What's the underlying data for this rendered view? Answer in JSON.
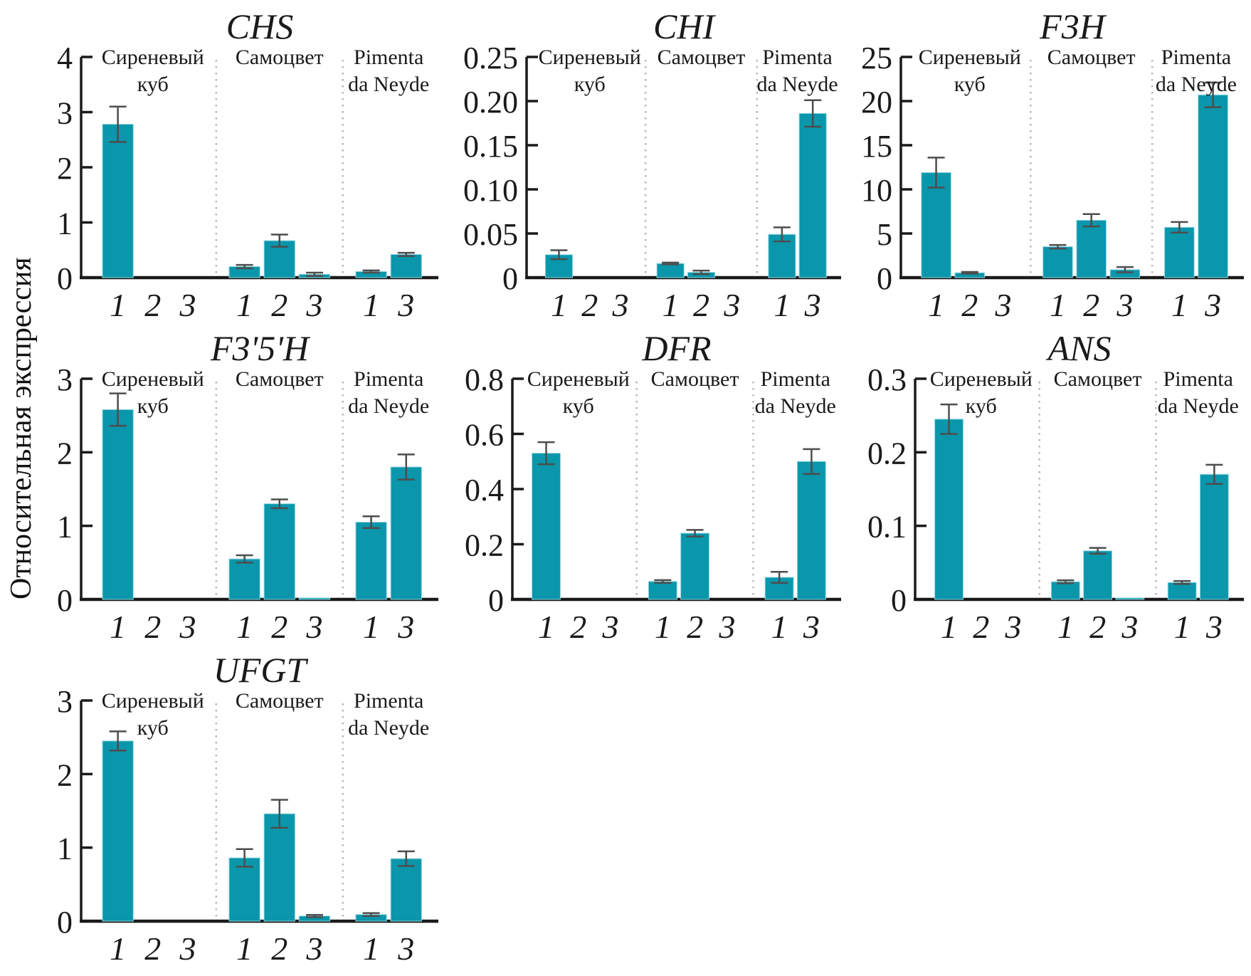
{
  "figure": {
    "ylabel": "Относительная экспрессия",
    "bar_color": "#0a96ab",
    "bar_edge_color": "#8fd5de",
    "error_color": "#4d4d4d",
    "axis_color": "#1a1a1a",
    "separator_color": "#b4b9b4",
    "group_names": [
      "Сиреневый куб",
      "Самоцвет",
      "Pimenta da Neyde"
    ]
  },
  "chart_data": [
    {
      "type": "bar",
      "title": "CHS",
      "ylim": [
        0,
        4
      ],
      "yticks": [
        "0",
        "1",
        "2",
        "3",
        "4"
      ],
      "groups": [
        {
          "name": "Сиреневый куб",
          "label_lines": [
            "Сиреневый",
            "куб"
          ],
          "bars": [
            {
              "x": "1",
              "value": 2.78,
              "err": 0.32
            },
            {
              "x": "2",
              "value": 0,
              "err": 0
            },
            {
              "x": "3",
              "value": 0,
              "err": 0
            }
          ]
        },
        {
          "name": "Самоцвет",
          "label_lines": [
            "Самоцвет"
          ],
          "bars": [
            {
              "x": "1",
              "value": 0.2,
              "err": 0.03
            },
            {
              "x": "2",
              "value": 0.67,
              "err": 0.11
            },
            {
              "x": "3",
              "value": 0.06,
              "err": 0.03
            }
          ]
        },
        {
          "name": "Pimenta da Neyde",
          "label_lines": [
            "Pimenta",
            "da Neyde"
          ],
          "bars": [
            {
              "x": "1",
              "value": 0.11,
              "err": 0.02
            },
            {
              "x": "3",
              "value": 0.42,
              "err": 0.03
            }
          ]
        }
      ]
    },
    {
      "type": "bar",
      "title": "CHI",
      "ylim": [
        0,
        0.25
      ],
      "yticks": [
        "0",
        "0.05",
        "0.10",
        "0.15",
        "0.20",
        "0.25"
      ],
      "groups": [
        {
          "name": "Сиреневый куб",
          "label_lines": [
            "Сиреневый",
            "куб"
          ],
          "bars": [
            {
              "x": "1",
              "value": 0.026,
              "err": 0.005
            },
            {
              "x": "2",
              "value": 0,
              "err": 0
            },
            {
              "x": "3",
              "value": 0,
              "err": 0
            }
          ]
        },
        {
          "name": "Самоцвет",
          "label_lines": [
            "Самоцвет"
          ],
          "bars": [
            {
              "x": "1",
              "value": 0.016,
              "err": 0.001
            },
            {
              "x": "2",
              "value": 0.006,
              "err": 0.002
            },
            {
              "x": "3",
              "value": 0,
              "err": 0
            }
          ]
        },
        {
          "name": "Pimenta da Neyde",
          "label_lines": [
            "Pimenta",
            "da Neyde"
          ],
          "bars": [
            {
              "x": "1",
              "value": 0.049,
              "err": 0.008
            },
            {
              "x": "3",
              "value": 0.186,
              "err": 0.015
            }
          ]
        }
      ]
    },
    {
      "type": "bar",
      "title": "F3H",
      "ylim": [
        0,
        25
      ],
      "yticks": [
        "0",
        "5",
        "10",
        "15",
        "20",
        "25"
      ],
      "groups": [
        {
          "name": "Сиреневый куб",
          "label_lines": [
            "Сиреневый",
            "куб"
          ],
          "bars": [
            {
              "x": "1",
              "value": 11.9,
              "err": 1.7
            },
            {
              "x": "2",
              "value": 0.55,
              "err": 0.1
            },
            {
              "x": "3",
              "value": 0,
              "err": 0
            }
          ]
        },
        {
          "name": "Самоцвет",
          "label_lines": [
            "Самоцвет"
          ],
          "bars": [
            {
              "x": "1",
              "value": 3.5,
              "err": 0.2
            },
            {
              "x": "2",
              "value": 6.5,
              "err": 0.7
            },
            {
              "x": "3",
              "value": 0.9,
              "err": 0.3
            }
          ]
        },
        {
          "name": "Pimenta da Neyde",
          "label_lines": [
            "Pimenta",
            "da Neyde"
          ],
          "bars": [
            {
              "x": "1",
              "value": 5.7,
              "err": 0.6
            },
            {
              "x": "3",
              "value": 20.7,
              "err": 1.4
            }
          ]
        }
      ]
    },
    {
      "type": "bar",
      "title": "F3'5'H",
      "ylim": [
        0,
        3
      ],
      "yticks": [
        "0",
        "1",
        "2",
        "3"
      ],
      "groups": [
        {
          "name": "Сиреневый куб",
          "label_lines": [
            "Сиреневый",
            "куб"
          ],
          "bars": [
            {
              "x": "1",
              "value": 2.58,
              "err": 0.22
            },
            {
              "x": "2",
              "value": 0,
              "err": 0
            },
            {
              "x": "3",
              "value": 0,
              "err": 0
            }
          ]
        },
        {
          "name": "Самоцвет",
          "label_lines": [
            "Самоцвет"
          ],
          "bars": [
            {
              "x": "1",
              "value": 0.55,
              "err": 0.05
            },
            {
              "x": "2",
              "value": 1.3,
              "err": 0.06
            },
            {
              "x": "3",
              "value": 0.02,
              "err": 0
            }
          ]
        },
        {
          "name": "Pimenta da Neyde",
          "label_lines": [
            "Pimenta",
            "da Neyde"
          ],
          "bars": [
            {
              "x": "1",
              "value": 1.05,
              "err": 0.08
            },
            {
              "x": "3",
              "value": 1.8,
              "err": 0.17
            }
          ]
        }
      ]
    },
    {
      "type": "bar",
      "title": "DFR",
      "ylim": [
        0,
        0.8
      ],
      "yticks": [
        "0",
        "0.2",
        "0.4",
        "0.6",
        "0.8"
      ],
      "groups": [
        {
          "name": "Сиреневый куб",
          "label_lines": [
            "Сиреневый",
            "куб"
          ],
          "bars": [
            {
              "x": "1",
              "value": 0.53,
              "err": 0.04
            },
            {
              "x": "2",
              "value": 0,
              "err": 0
            },
            {
              "x": "3",
              "value": 0,
              "err": 0
            }
          ]
        },
        {
          "name": "Самоцвет",
          "label_lines": [
            "Самоцвет"
          ],
          "bars": [
            {
              "x": "1",
              "value": 0.065,
              "err": 0.005
            },
            {
              "x": "2",
              "value": 0.24,
              "err": 0.012
            },
            {
              "x": "3",
              "value": 0,
              "err": 0
            }
          ]
        },
        {
          "name": "Pimenta da Neyde",
          "label_lines": [
            "Pimenta",
            "da Neyde"
          ],
          "bars": [
            {
              "x": "1",
              "value": 0.08,
              "err": 0.02
            },
            {
              "x": "3",
              "value": 0.5,
              "err": 0.045
            }
          ]
        }
      ]
    },
    {
      "type": "bar",
      "title": "ANS",
      "ylim": [
        0,
        0.3
      ],
      "yticks": [
        "0",
        "0.1",
        "0.2",
        "0.3"
      ],
      "groups": [
        {
          "name": "Сиреневый куб",
          "label_lines": [
            "Сиреневый",
            "куб"
          ],
          "bars": [
            {
              "x": "1",
              "value": 0.245,
              "err": 0.02
            },
            {
              "x": "2",
              "value": 0,
              "err": 0
            },
            {
              "x": "3",
              "value": 0,
              "err": 0
            }
          ]
        },
        {
          "name": "Самоцвет",
          "label_lines": [
            "Самоцвет"
          ],
          "bars": [
            {
              "x": "1",
              "value": 0.024,
              "err": 0.002
            },
            {
              "x": "2",
              "value": 0.066,
              "err": 0.004
            },
            {
              "x": "3",
              "value": 0.002,
              "err": 0
            }
          ]
        },
        {
          "name": "Pimenta da Neyde",
          "label_lines": [
            "Pimenta",
            "da Neyde"
          ],
          "bars": [
            {
              "x": "1",
              "value": 0.023,
              "err": 0.002
            },
            {
              "x": "3",
              "value": 0.17,
              "err": 0.013
            }
          ]
        }
      ]
    },
    {
      "type": "bar",
      "title": "UFGT",
      "ylim": [
        0,
        3
      ],
      "yticks": [
        "0",
        "1",
        "2",
        "3"
      ],
      "groups": [
        {
          "name": "Сиреневый куб",
          "label_lines": [
            "Сиреневый",
            "куб"
          ],
          "bars": [
            {
              "x": "1",
              "value": 2.45,
              "err": 0.13
            },
            {
              "x": "2",
              "value": 0,
              "err": 0
            },
            {
              "x": "3",
              "value": 0,
              "err": 0
            }
          ]
        },
        {
          "name": "Самоцвет",
          "label_lines": [
            "Самоцвет"
          ],
          "bars": [
            {
              "x": "1",
              "value": 0.86,
              "err": 0.12
            },
            {
              "x": "2",
              "value": 1.46,
              "err": 0.19
            },
            {
              "x": "3",
              "value": 0.07,
              "err": 0.015
            }
          ]
        },
        {
          "name": "Pimenta da Neyde",
          "label_lines": [
            "Pimenta",
            "da Neyde"
          ],
          "bars": [
            {
              "x": "1",
              "value": 0.09,
              "err": 0.02
            },
            {
              "x": "3",
              "value": 0.85,
              "err": 0.1
            }
          ]
        }
      ]
    }
  ]
}
